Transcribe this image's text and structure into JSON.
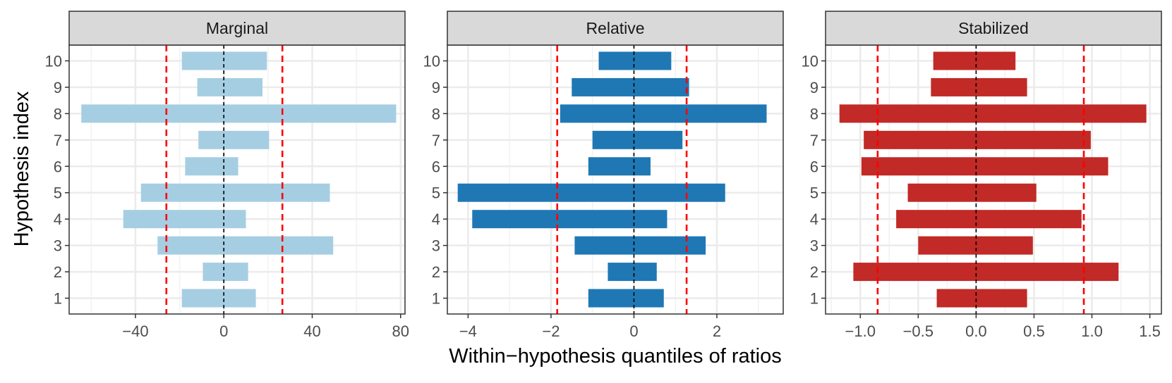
{
  "chart_data": {
    "type": "bar",
    "subtype": "faceted horizontal range bars",
    "ylabel": "Hypothesis index",
    "xlabel": "Within−hypothesis quantiles of ratios",
    "categories": [
      "1",
      "2",
      "3",
      "4",
      "5",
      "6",
      "7",
      "8",
      "9",
      "10"
    ],
    "grid": true,
    "reference_line_at": 0,
    "panels": [
      {
        "title": "Marginal",
        "color": "#a6cee3",
        "xlim": [
          -70,
          82
        ],
        "xticks": [
          -40,
          0,
          40,
          80
        ],
        "xtick_labels": [
          "−40",
          "0",
          "40",
          "80"
        ],
        "thresholds": [
          -26,
          26.5
        ],
        "ranges": [
          [
            -19,
            14.5
          ],
          [
            -9.5,
            11
          ],
          [
            -30,
            49.5
          ],
          [
            -45.5,
            10
          ],
          [
            -37.5,
            48
          ],
          [
            -17.5,
            6.5
          ],
          [
            -11.5,
            20.5
          ],
          [
            -64.5,
            78
          ],
          [
            -12,
            17.5
          ],
          [
            -19,
            19.5
          ]
        ]
      },
      {
        "title": "Relative",
        "color": "#1f78b4",
        "xlim": [
          -4.5,
          3.6
        ],
        "xticks": [
          -4,
          -2,
          0,
          2
        ],
        "xtick_labels": [
          "−4",
          "−2",
          "0",
          "2"
        ],
        "thresholds": [
          -1.85,
          1.27
        ],
        "ranges": [
          [
            -1.1,
            0.72
          ],
          [
            -0.63,
            0.55
          ],
          [
            -1.43,
            1.73
          ],
          [
            -3.9,
            0.8
          ],
          [
            -4.25,
            2.2
          ],
          [
            -1.1,
            0.4
          ],
          [
            -1.0,
            1.17
          ],
          [
            -1.78,
            3.2
          ],
          [
            -1.5,
            1.33
          ],
          [
            -0.85,
            0.9
          ]
        ]
      },
      {
        "title": "Stabilized",
        "color": "#c12a26",
        "xlim": [
          -1.3,
          1.6
        ],
        "xticks": [
          -1.0,
          -0.5,
          0.0,
          0.5,
          1.0,
          1.5
        ],
        "xtick_labels": [
          "−1.0",
          "−0.5",
          "0.0",
          "0.5",
          "1.0",
          "1.5"
        ],
        "thresholds": [
          -0.85,
          0.93
        ],
        "ranges": [
          [
            -0.34,
            0.44
          ],
          [
            -1.06,
            1.23
          ],
          [
            -0.5,
            0.49
          ],
          [
            -0.69,
            0.91
          ],
          [
            -0.59,
            0.52
          ],
          [
            -0.99,
            1.14
          ],
          [
            -0.97,
            0.99
          ],
          [
            -1.18,
            1.47
          ],
          [
            -0.39,
            0.44
          ],
          [
            -0.37,
            0.34
          ]
        ]
      }
    ]
  }
}
